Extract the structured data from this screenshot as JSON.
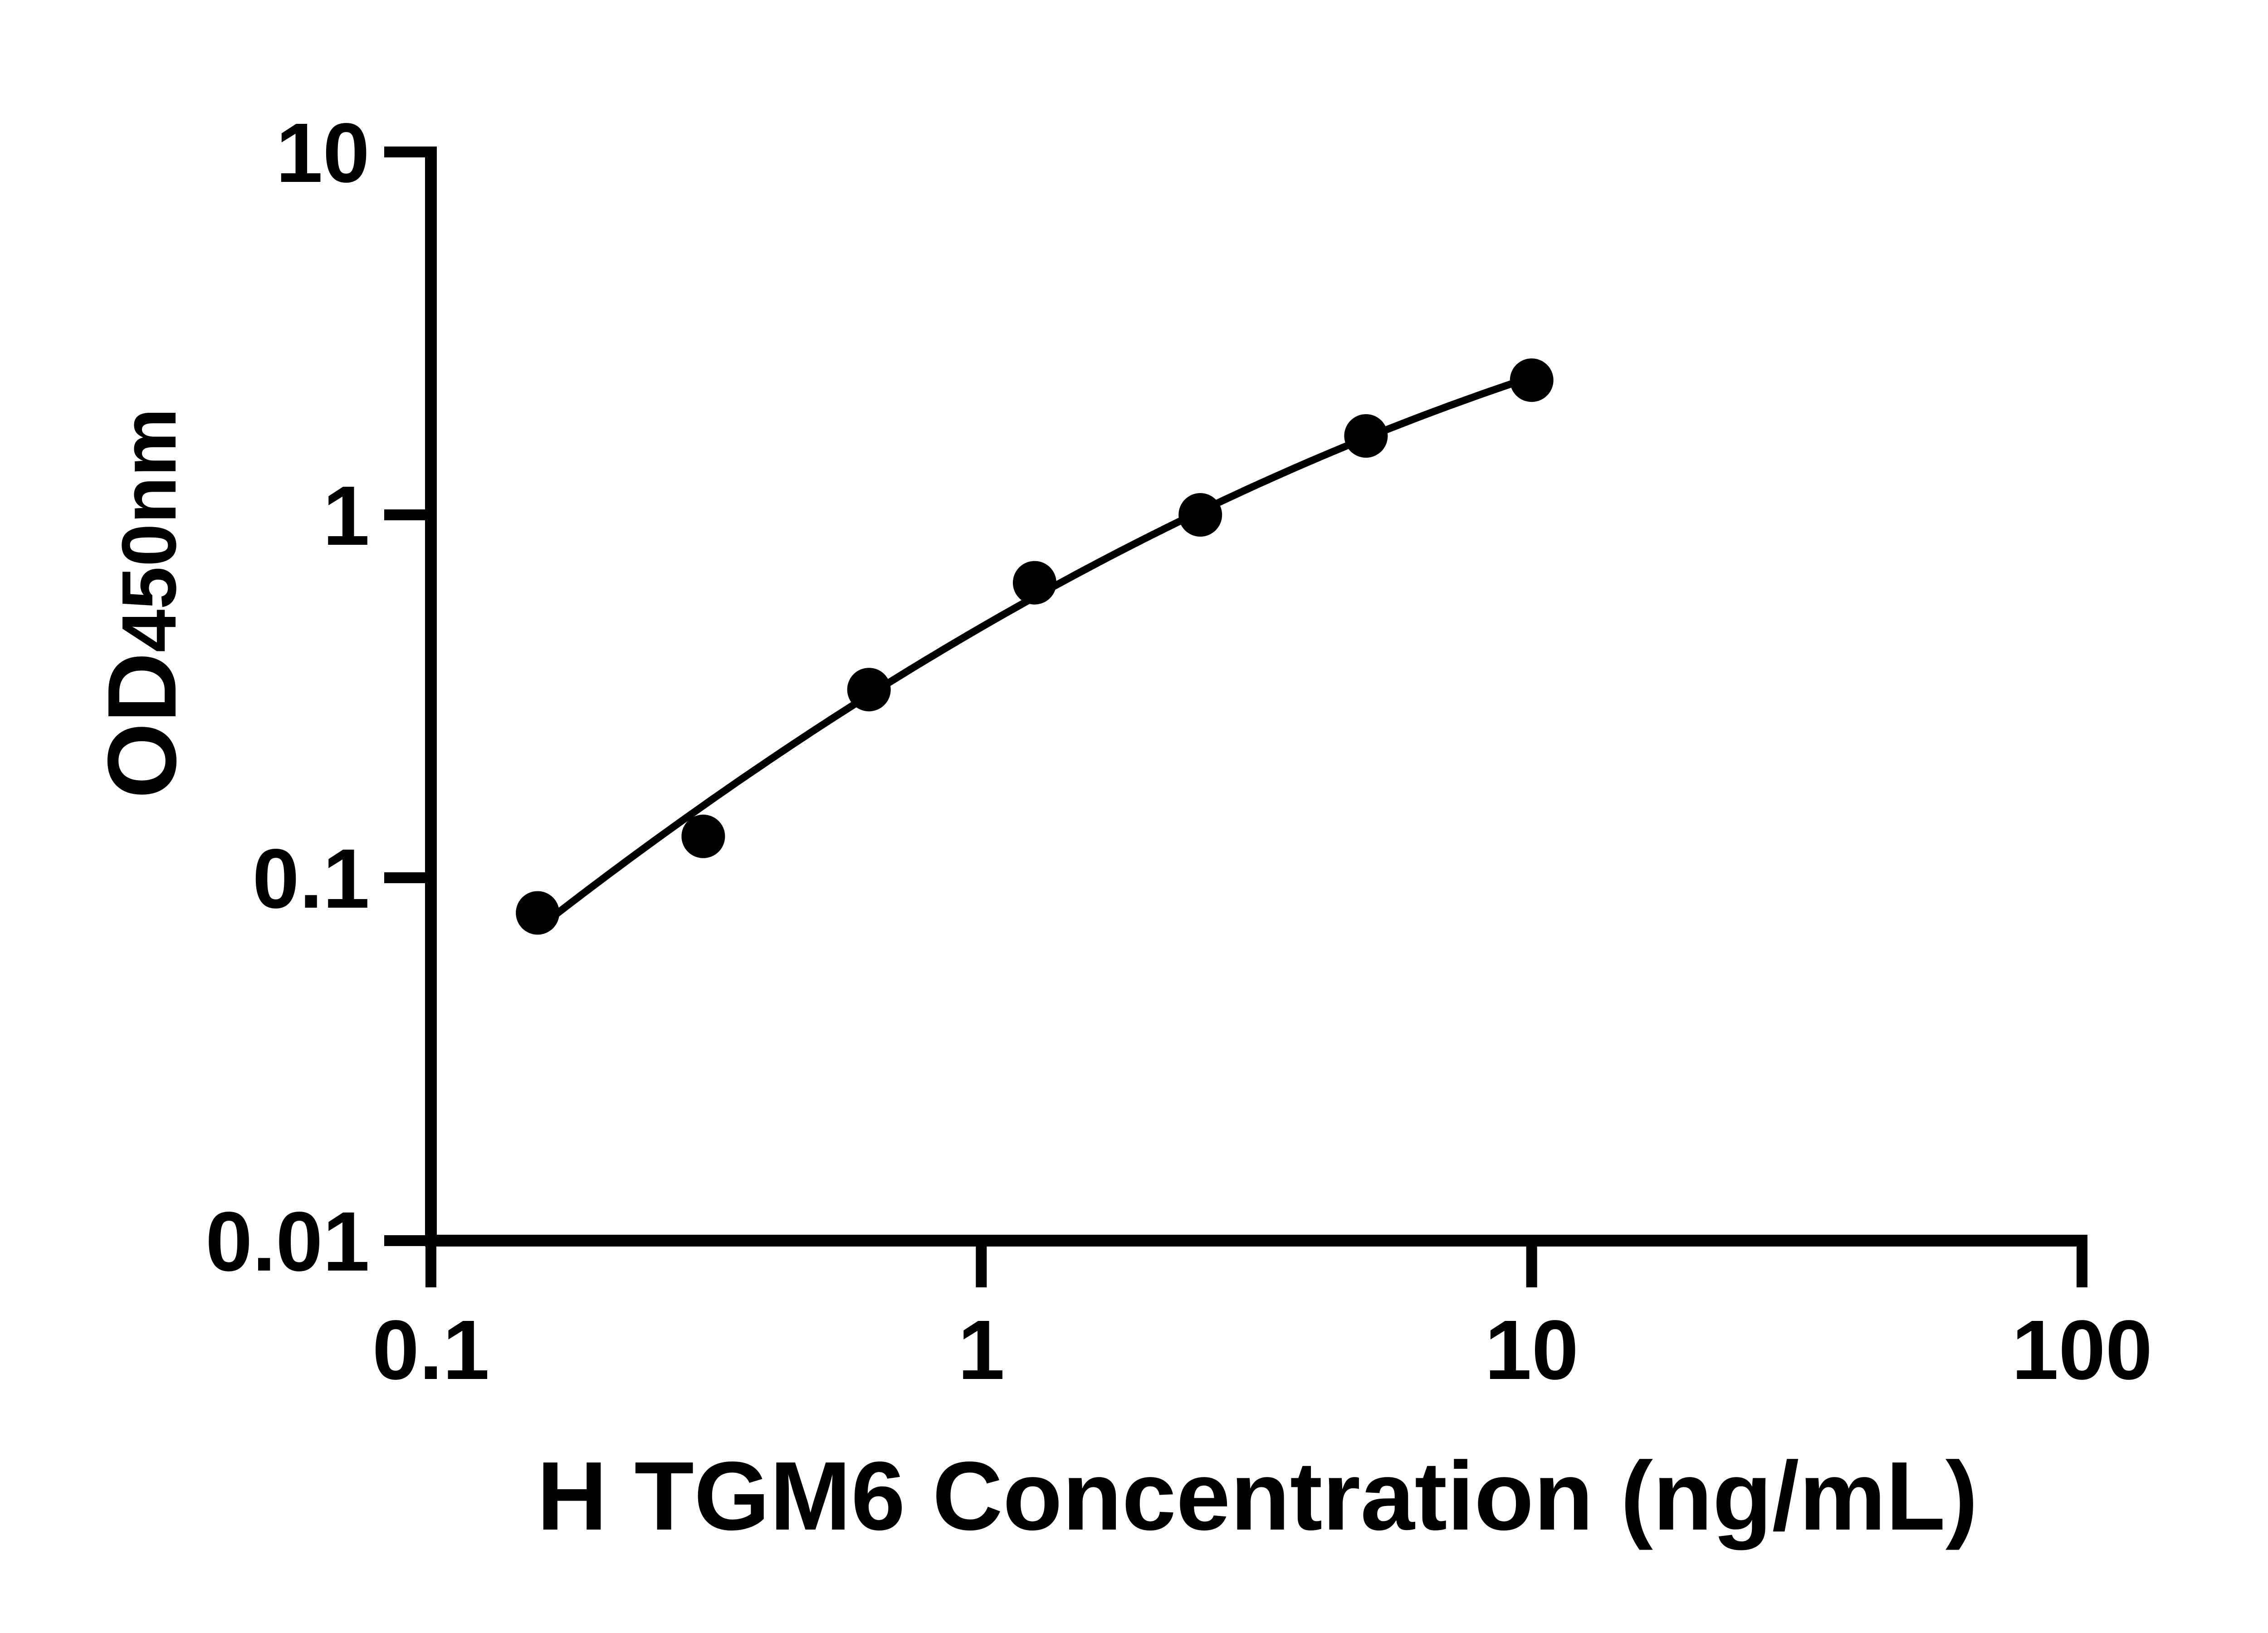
{
  "figure": {
    "background_color": "#ffffff",
    "foreground_color": "#000000"
  },
  "y_axis_title": {
    "main": "OD",
    "sub": "450nm"
  },
  "chart_data": {
    "type": "scatter",
    "xlabel": "H TGM6 Concentration (ng/mL)",
    "ylabel": "OD450nm",
    "x_scale": "log10",
    "y_scale": "log10",
    "xlim": [
      0.1,
      100
    ],
    "ylim": [
      0.01,
      10
    ],
    "x_ticks": {
      "values": [
        0.1,
        1,
        10,
        100
      ],
      "labels": [
        "0.1",
        "1",
        "10",
        "100"
      ]
    },
    "y_ticks": {
      "values": [
        0.01,
        0.1,
        1,
        10
      ],
      "labels": [
        "0.01",
        "0.1",
        "1",
        "10"
      ]
    },
    "grid": false,
    "legend_position": "none",
    "marker": "filled-circle",
    "marker_color": "#000000",
    "curve": "smooth fit through points (quadratic in log-log space), drawn from first to last point",
    "series": [
      {
        "points": [
          {
            "x": 0.15625,
            "y": 0.08
          },
          {
            "x": 0.3125,
            "y": 0.13
          },
          {
            "x": 0.625,
            "y": 0.33
          },
          {
            "x": 1.25,
            "y": 0.65
          },
          {
            "x": 2.5,
            "y": 1.0
          },
          {
            "x": 5,
            "y": 1.65
          },
          {
            "x": 10,
            "y": 2.35
          }
        ]
      }
    ]
  }
}
